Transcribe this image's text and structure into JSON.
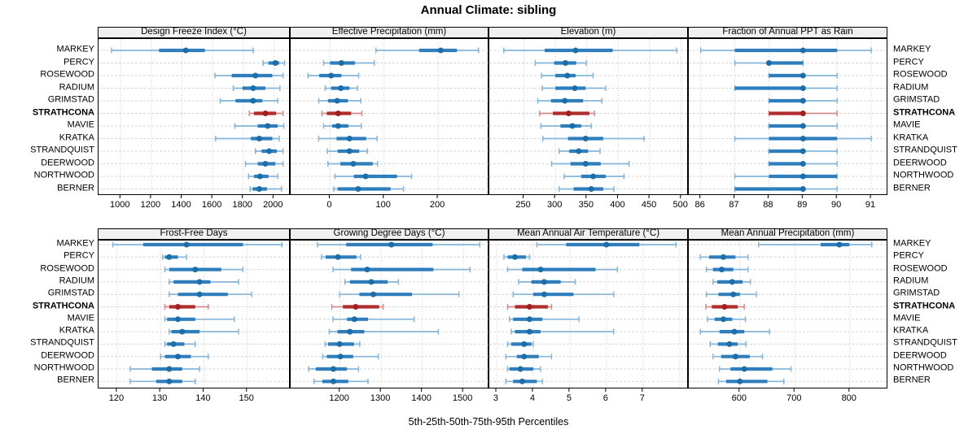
{
  "title": "Annual Climate: sibling",
  "caption": "5th-25th-50th-75th-95th Percentiles",
  "percentiles": [
    5,
    25,
    50,
    75,
    95
  ],
  "stations": [
    "MARKEY",
    "PERCY",
    "ROSEWOOD",
    "RADIUM",
    "GRIMSTAD",
    "STRATHCONA",
    "MAVIE",
    "KRATKA",
    "STRANDQUIST",
    "DEERWOOD",
    "NORTHWOOD",
    "BERNER"
  ],
  "highlight_station": "STRATHCONA",
  "colors": {
    "blue_dot": "#1C6DA8",
    "blue_box": "#2E7DBC",
    "blue_whisker": "#85B4D8",
    "red_dot": "#A02020",
    "red_box": "#B12C2C",
    "red_whisker": "#D38A8A",
    "grid": "#CFCFCF",
    "strip_bg": "#F0F0F0",
    "border": "#000000",
    "text": "#000000"
  },
  "chart_data": [
    {
      "type": "dotplot-interval",
      "title": "Design Freeze Index (°C)",
      "row": 0,
      "col": 0,
      "xlim": [
        855,
        2110
      ],
      "ticks": [
        1000,
        1200,
        1400,
        1600,
        1800,
        2000
      ],
      "values": [
        [
          940,
          1250,
          1425,
          1550,
          1865
        ],
        [
          1930,
          1965,
          2010,
          2035,
          2070
        ],
        [
          1615,
          1725,
          1880,
          1990,
          2060
        ],
        [
          1735,
          1795,
          1865,
          1945,
          2040
        ],
        [
          1650,
          1750,
          1865,
          1925,
          2025
        ],
        [
          1840,
          1870,
          1945,
          2015,
          2060
        ],
        [
          1745,
          1895,
          1960,
          2025,
          2065
        ],
        [
          1620,
          1850,
          1905,
          1990,
          2035
        ],
        [
          1880,
          1920,
          1970,
          2020,
          2060
        ],
        [
          1815,
          1895,
          1945,
          2010,
          2060
        ],
        [
          1835,
          1870,
          1910,
          1965,
          2025
        ],
        [
          1845,
          1862,
          1905,
          1955,
          2050
        ]
      ]
    },
    {
      "type": "dotplot-interval",
      "title": "Effective Precipitation (mm)",
      "row": 0,
      "col": 1,
      "xlim": [
        -73,
        295
      ],
      "ticks": [
        0,
        100,
        200
      ],
      "values": [
        [
          85,
          165,
          205,
          235,
          275
        ],
        [
          -12,
          0,
          21,
          46,
          82
        ],
        [
          -41,
          -20,
          2,
          21,
          53
        ],
        [
          -9,
          2,
          20,
          36,
          51
        ],
        [
          -21,
          -4,
          13,
          33,
          57
        ],
        [
          -15,
          -6,
          15,
          39,
          59
        ],
        [
          -12,
          4,
          15,
          34,
          58
        ],
        [
          -21,
          12,
          36,
          67,
          87
        ],
        [
          -5,
          14,
          36,
          54,
          69
        ],
        [
          -4,
          19,
          43,
          79,
          88
        ],
        [
          9,
          44,
          66,
          124,
          151
        ],
        [
          7,
          14,
          52,
          112,
          136
        ]
      ]
    },
    {
      "type": "dotplot-interval",
      "title": "Elevation (m)",
      "row": 0,
      "col": 2,
      "xlim": [
        195,
        512
      ],
      "ticks": [
        250,
        300,
        350,
        400,
        450,
        500
      ],
      "values": [
        [
          218,
          283,
          332,
          391,
          493
        ],
        [
          268,
          298,
          316,
          333,
          349
        ],
        [
          278,
          300,
          319,
          332,
          360
        ],
        [
          279,
          300,
          331,
          348,
          380
        ],
        [
          272,
          293,
          315,
          344,
          374
        ],
        [
          275,
          296,
          321,
          354,
          362
        ],
        [
          277,
          308,
          327,
          341,
          357
        ],
        [
          280,
          320,
          348,
          376,
          441
        ],
        [
          306,
          322,
          337,
          352,
          371
        ],
        [
          294,
          324,
          348,
          372,
          417
        ],
        [
          314,
          341,
          360,
          380,
          409
        ],
        [
          306,
          329,
          357,
          376,
          393
        ]
      ]
    },
    {
      "type": "dotplot-interval",
      "title": "Fraction of Annual PPT as Rain",
      "row": 0,
      "col": 3,
      "xlim": [
        85.65,
        91.5
      ],
      "ticks": [
        86,
        87,
        88,
        89,
        90,
        91
      ],
      "values": [
        [
          86,
          87,
          89,
          90,
          91
        ],
        [
          87,
          88,
          88,
          89,
          89
        ],
        [
          88,
          88,
          89,
          89,
          90
        ],
        [
          87,
          87,
          89,
          89,
          90
        ],
        [
          88,
          88,
          89,
          89,
          90
        ],
        [
          88,
          88,
          89,
          89,
          90
        ],
        [
          88,
          88,
          89,
          89,
          90
        ],
        [
          87,
          88,
          89,
          90,
          91
        ],
        [
          88,
          88,
          89,
          89,
          90
        ],
        [
          88,
          88,
          89,
          89,
          90
        ],
        [
          87,
          88,
          89,
          90,
          90
        ],
        [
          87,
          87,
          89,
          89,
          90
        ]
      ]
    },
    {
      "type": "dotplot-interval",
      "title": "Frost-Free Days",
      "row": 1,
      "col": 0,
      "xlim": [
        115.7,
        160
      ],
      "ticks": [
        120,
        130,
        140,
        150
      ],
      "values": [
        [
          119,
          126,
          136,
          149,
          158
        ],
        [
          130.5,
          131,
          132,
          134,
          136
        ],
        [
          131,
          132,
          138,
          144,
          149
        ],
        [
          132,
          133,
          139,
          141.5,
          148
        ],
        [
          132,
          134,
          139,
          145.5,
          151
        ],
        [
          131,
          132,
          134,
          138,
          141
        ],
        [
          131,
          131.5,
          134,
          138,
          147
        ],
        [
          132,
          132.5,
          135,
          139,
          148
        ],
        [
          131,
          131.5,
          133,
          135.5,
          138
        ],
        [
          130,
          131,
          134,
          137,
          141
        ],
        [
          123,
          128,
          132,
          135,
          139
        ],
        [
          123,
          129,
          132,
          135,
          138
        ]
      ]
    },
    {
      "type": "dotplot-interval",
      "title": "Growing Degree Days (°C)",
      "row": 1,
      "col": 1,
      "xlim": [
        1080,
        1563
      ],
      "ticks": [
        1200,
        1300,
        1400,
        1500
      ],
      "values": [
        [
          1145,
          1215,
          1325,
          1425,
          1540
        ],
        [
          1155,
          1165,
          1195,
          1240,
          1250
        ],
        [
          1183,
          1227,
          1266,
          1427,
          1516
        ],
        [
          1212,
          1224,
          1276,
          1316,
          1342
        ],
        [
          1199,
          1247,
          1281,
          1375,
          1489
        ],
        [
          1180,
          1207,
          1238,
          1295,
          1305
        ],
        [
          1183,
          1217,
          1235,
          1268,
          1380
        ],
        [
          1174,
          1194,
          1224,
          1259,
          1439
        ],
        [
          1164,
          1171,
          1199,
          1234,
          1248
        ],
        [
          1158,
          1168,
          1201,
          1232,
          1293
        ],
        [
          1124,
          1141,
          1184,
          1217,
          1245
        ],
        [
          1137,
          1157,
          1184,
          1220,
          1268
        ]
      ]
    },
    {
      "type": "dotplot-interval",
      "title": "Mean Annual Air Temperature (°C)",
      "row": 1,
      "col": 2,
      "xlim": [
        2.8,
        8.25
      ],
      "ticks": [
        3,
        4,
        5,
        6,
        7
      ],
      "grid_extra": [
        8
      ],
      "values": [
        [
          4.1,
          4.9,
          6.0,
          6.9,
          7.9
        ],
        [
          3.2,
          3.3,
          3.5,
          3.8,
          3.9
        ],
        [
          3.3,
          3.7,
          4.2,
          5.7,
          6.3
        ],
        [
          3.6,
          3.95,
          4.3,
          4.75,
          5.15
        ],
        [
          3.45,
          4.0,
          4.3,
          5.1,
          6.2
        ],
        [
          3.3,
          3.5,
          3.9,
          4.4,
          4.5
        ],
        [
          3.35,
          3.45,
          3.9,
          4.25,
          5.25
        ],
        [
          3.4,
          3.5,
          3.9,
          4.2,
          6.2
        ],
        [
          3.3,
          3.4,
          3.75,
          3.95,
          4.0
        ],
        [
          3.25,
          3.55,
          3.75,
          4.15,
          4.5
        ],
        [
          3.3,
          3.35,
          3.65,
          4.0,
          4.2
        ],
        [
          3.25,
          3.45,
          3.7,
          4.1,
          4.25
        ]
      ]
    },
    {
      "type": "dotplot-interval",
      "title": "Mean Annual Precipitation (mm)",
      "row": 1,
      "col": 3,
      "xlim": [
        507,
        870
      ],
      "ticks": [
        600,
        700,
        800
      ],
      "values": [
        [
          634,
          747,
          781,
          799,
          840
        ],
        [
          528,
          544,
          570,
          592,
          615
        ],
        [
          539,
          551,
          567,
          588,
          615
        ],
        [
          551,
          559,
          586,
          605,
          619
        ],
        [
          539,
          561,
          588,
          600,
          630
        ],
        [
          538,
          549,
          572,
          596,
          608
        ],
        [
          541,
          554,
          570,
          586,
          610
        ],
        [
          528,
          563,
          590,
          608,
          654
        ],
        [
          546,
          560,
          581,
          596,
          611
        ],
        [
          551,
          566,
          592,
          618,
          641
        ],
        [
          563,
          583,
          608,
          659,
          693
        ],
        [
          561,
          575,
          600,
          650,
          680
        ]
      ]
    }
  ]
}
